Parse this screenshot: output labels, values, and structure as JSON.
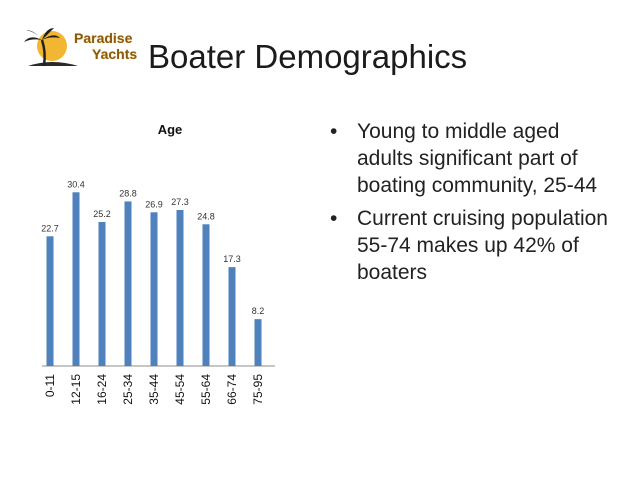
{
  "logo": {
    "line1": "Paradise",
    "line2": "Yachts"
  },
  "slide": {
    "title": "Boater Demographics"
  },
  "bullets": [
    "Young to middle aged adults significant part of boating community, 25-44",
    "Current cruising population 55-74 makes up 42% of boaters"
  ],
  "colors": {
    "bar": "#4f81bd",
    "axis": "#8c8c8c"
  },
  "chart_data": {
    "type": "bar",
    "title": "Age",
    "categories": [
      "0-11",
      "12-15",
      "16-24",
      "25-34",
      "35-44",
      "45-54",
      "55-64",
      "66-74",
      "75-95"
    ],
    "values": [
      22.7,
      30.4,
      25.2,
      28.8,
      26.9,
      27.3,
      24.8,
      17.3,
      8.2
    ],
    "data_labels": [
      "22.7",
      "30.4",
      "25.2",
      "28.8",
      "26.9",
      "27.3",
      "24.8",
      "17.3",
      "8.2"
    ],
    "xlabel": "",
    "ylabel": "",
    "ylim": [
      0,
      35
    ],
    "legend": "none",
    "grid": false
  }
}
